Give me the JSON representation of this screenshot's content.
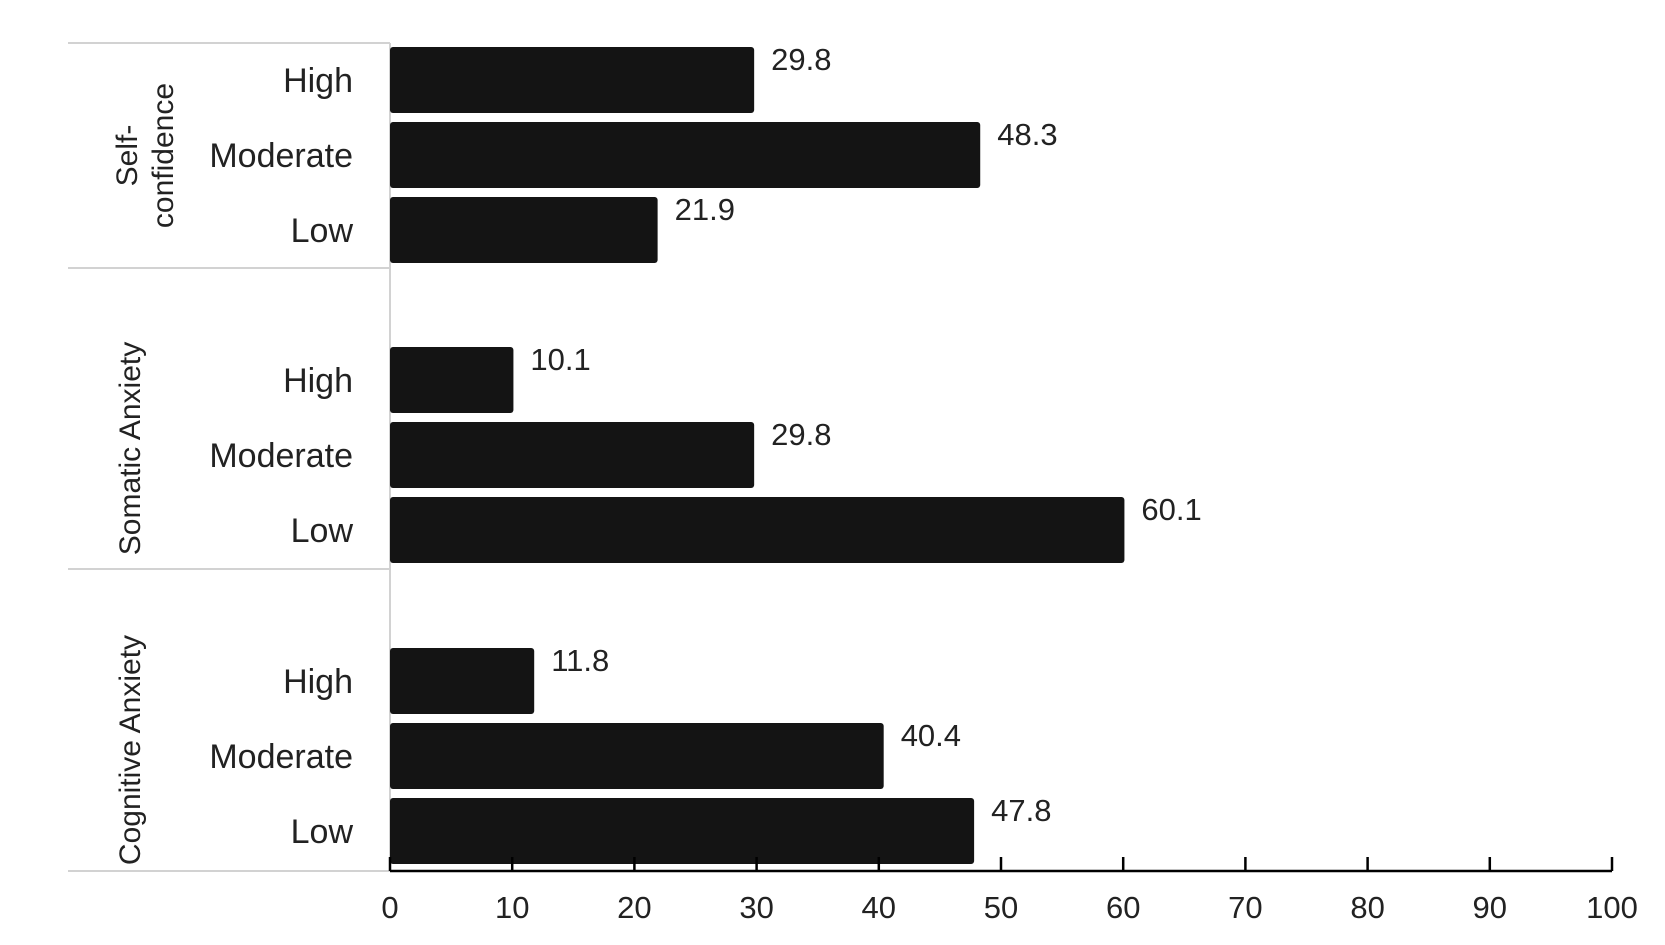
{
  "chart_data": {
    "type": "bar",
    "orientation": "horizontal",
    "title": "",
    "xlabel": "",
    "ylabel": "",
    "xlim": [
      0,
      100
    ],
    "xticks": [
      "0",
      "10",
      "20",
      "30",
      "40",
      "50",
      "60",
      "70",
      "80",
      "90",
      "100"
    ],
    "grid": false,
    "legend": "none",
    "bar_color": "#141414",
    "groups": [
      {
        "name": "Self-confidence",
        "name_lines": [
          "Self-",
          "confidence"
        ],
        "categories": [
          "High",
          "Moderate",
          "Low"
        ],
        "values": [
          29.8,
          48.3,
          21.9
        ]
      },
      {
        "name": "Somatic Anxiety",
        "name_lines": [
          "Somatic Anxiety"
        ],
        "categories": [
          "High",
          "Moderate",
          "Low"
        ],
        "values": [
          10.1,
          29.8,
          60.1
        ]
      },
      {
        "name": "Cognitive Anxiety",
        "name_lines": [
          "Cognitive Anxiety"
        ],
        "categories": [
          "High",
          "Moderate",
          "Low"
        ],
        "values": [
          11.8,
          40.4,
          47.8
        ]
      }
    ]
  }
}
